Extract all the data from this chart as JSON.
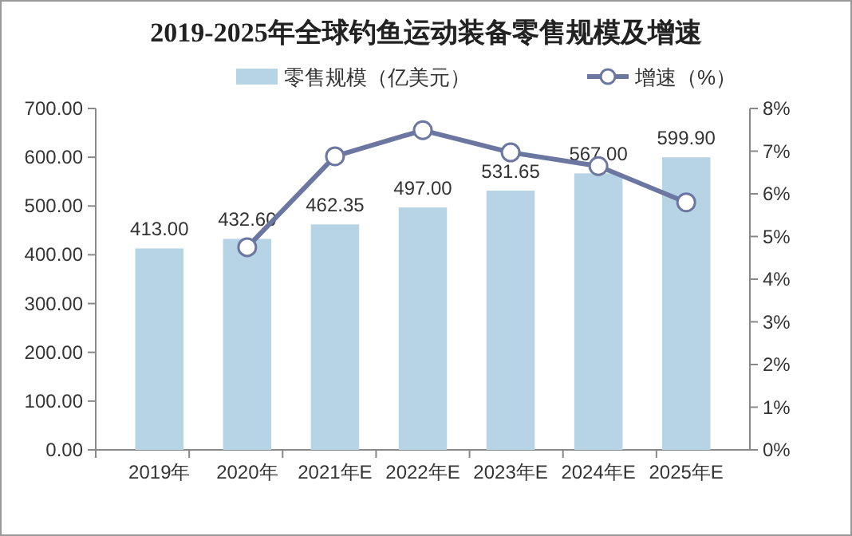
{
  "chart_data": {
    "type": "bar",
    "title": "2019-2025年全球钓鱼运动装备零售规模及增速",
    "categories": [
      "2019年",
      "2020年",
      "2021年E",
      "2022年E",
      "2023年E",
      "2024年E",
      "2025年E"
    ],
    "series": [
      {
        "name": "零售规模（亿美元）",
        "color": "#b7d3e6",
        "values": [
          413.0,
          432.6,
          462.35,
          497.0,
          531.65,
          567.0,
          599.9
        ],
        "value_labels": [
          "413.00",
          "432.60",
          "462.35",
          "497.00",
          "531.65",
          "567.00",
          "599.90"
        ]
      },
      {
        "name": "增速（%）",
        "type": "line",
        "axis": "y2",
        "color": "#6b77a0",
        "marker": "circle",
        "values": [
          null,
          4.75,
          6.88,
          7.49,
          6.97,
          6.65,
          5.8
        ]
      }
    ],
    "ylim": [
      0,
      700
    ],
    "yticks": [
      {
        "value": 0,
        "label": "0.00"
      },
      {
        "value": 100,
        "label": "100.00"
      },
      {
        "value": 200,
        "label": "200.00"
      },
      {
        "value": 300,
        "label": "300.00"
      },
      {
        "value": 400,
        "label": "400.00"
      },
      {
        "value": 500,
        "label": "500.00"
      },
      {
        "value": 600,
        "label": "600.00"
      },
      {
        "value": 700,
        "label": "700.00"
      }
    ],
    "y2lim": [
      0,
      8
    ],
    "y2ticks": [
      {
        "value": 0,
        "label": "0%"
      },
      {
        "value": 1,
        "label": "1%"
      },
      {
        "value": 2,
        "label": "2%"
      },
      {
        "value": 3,
        "label": "3%"
      },
      {
        "value": 4,
        "label": "4%"
      },
      {
        "value": 5,
        "label": "5%"
      },
      {
        "value": 6,
        "label": "6%"
      },
      {
        "value": 7,
        "label": "7%"
      },
      {
        "value": 8,
        "label": "8%"
      }
    ],
    "legend": "top",
    "grid": false
  }
}
